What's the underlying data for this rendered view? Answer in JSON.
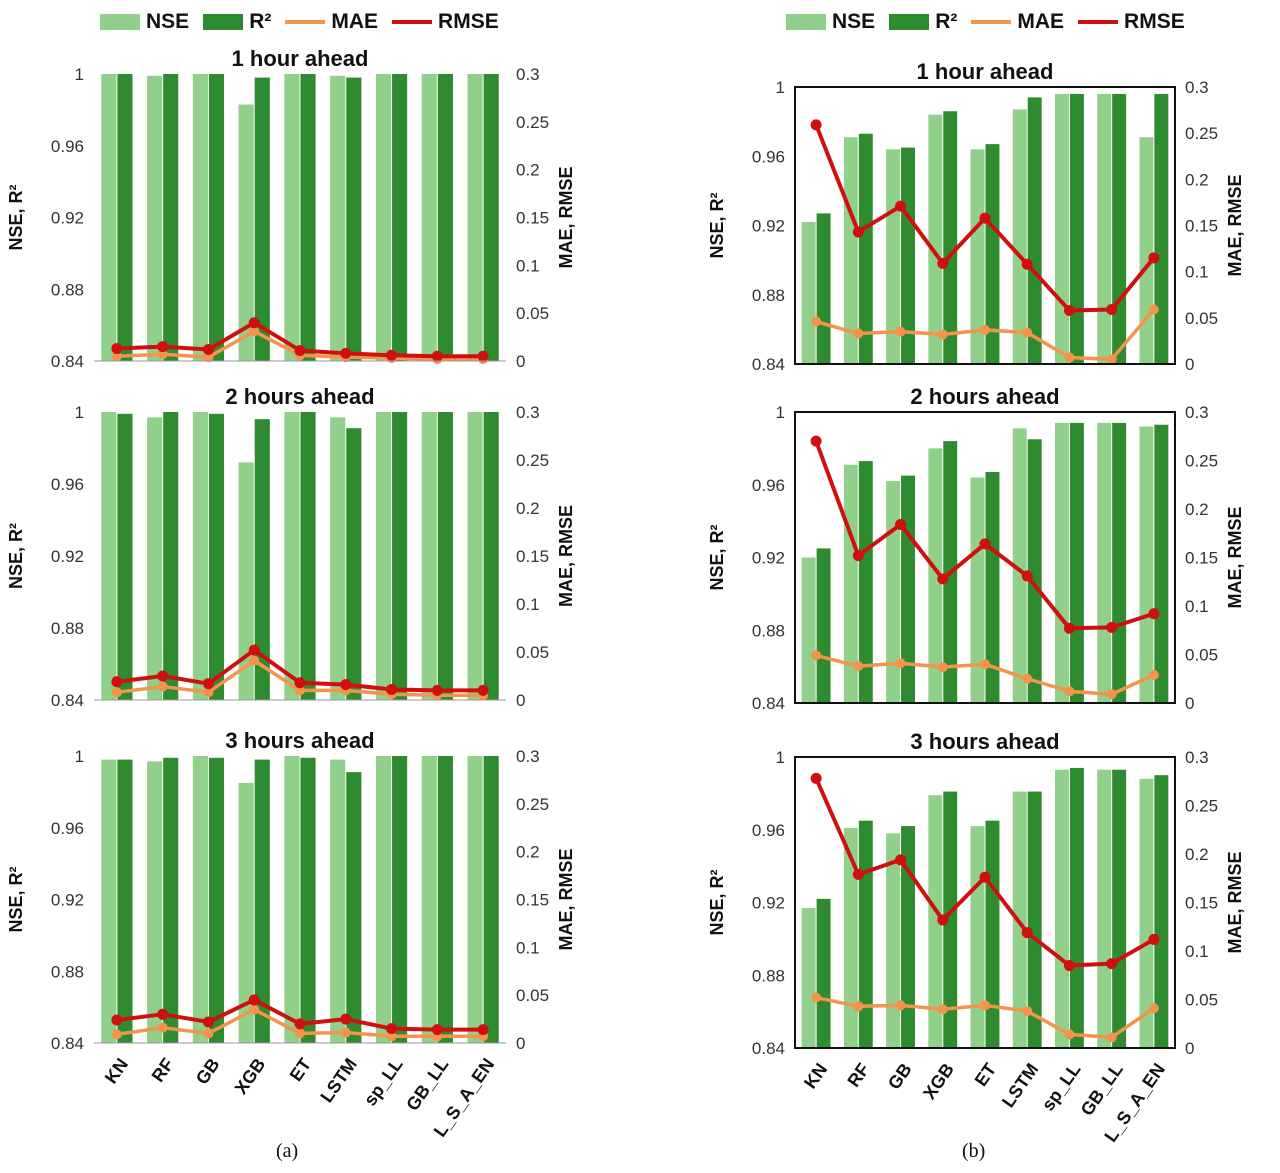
{
  "legend": {
    "items": [
      {
        "label": "NSE",
        "kind": "bar",
        "color": "#90d08a"
      },
      {
        "label": "R²",
        "kind": "bar",
        "color": "#2e8b30"
      },
      {
        "label": "MAE",
        "kind": "line",
        "color": "#f4944a"
      },
      {
        "label": "RMSE",
        "kind": "line",
        "color": "#d01010"
      }
    ]
  },
  "captions": {
    "a": "(a)",
    "b": "(b)"
  },
  "chart_data": [
    {
      "type": "bar+line",
      "panel": "a",
      "title": "1 hour ahead",
      "categories": [
        "KN",
        "RF",
        "GB",
        "XGB",
        "ET",
        "LSTM",
        "sp_LL",
        "GB_LL",
        "L_S_A_EN"
      ],
      "ylabel": "NSE, R²",
      "y2label": "MAE, RMSE",
      "ylim": [
        0.84,
        1
      ],
      "yticks": [
        "0.84",
        "0.88",
        "0.92",
        "0.96",
        "1"
      ],
      "y2lim": [
        0,
        0.3
      ],
      "y2ticks": [
        "0",
        "0.05",
        "0.1",
        "0.15",
        "0.2",
        "0.25",
        "0.3"
      ],
      "series": [
        {
          "name": "NSE",
          "kind": "bar",
          "values": [
            1.0,
            0.999,
            1.0,
            0.983,
            1.0,
            0.999,
            1.0,
            1.0,
            1.0
          ]
        },
        {
          "name": "R²",
          "kind": "bar",
          "values": [
            1.0,
            1.0,
            1.0,
            0.998,
            1.0,
            0.998,
            1.0,
            1.0,
            1.0
          ]
        },
        {
          "name": "MAE",
          "kind": "line",
          "axis": "right",
          "values": [
            0.005,
            0.007,
            0.004,
            0.031,
            0.006,
            0.004,
            0.003,
            0.002,
            0.002
          ]
        },
        {
          "name": "RMSE",
          "kind": "line",
          "axis": "right",
          "values": [
            0.013,
            0.015,
            0.012,
            0.04,
            0.011,
            0.008,
            0.006,
            0.005,
            0.005
          ]
        }
      ],
      "axis_style": "open"
    },
    {
      "type": "bar+line",
      "panel": "a",
      "title": "2 hours ahead",
      "categories": [
        "KN",
        "RF",
        "GB",
        "XGB",
        "ET",
        "LSTM",
        "sp_LL",
        "GB_LL",
        "L_S_A_EN"
      ],
      "ylabel": "NSE, R²",
      "y2label": "MAE, RMSE",
      "ylim": [
        0.84,
        1
      ],
      "yticks": [
        "0.84",
        "0.88",
        "0.92",
        "0.96",
        "1"
      ],
      "y2lim": [
        0,
        0.3
      ],
      "y2ticks": [
        "0",
        "0.05",
        "0.1",
        "0.15",
        "0.2",
        "0.25",
        "0.3"
      ],
      "series": [
        {
          "name": "NSE",
          "kind": "bar",
          "values": [
            1.0,
            0.997,
            1.0,
            0.972,
            1.0,
            0.997,
            1.0,
            1.0,
            1.0
          ]
        },
        {
          "name": "R²",
          "kind": "bar",
          "values": [
            0.999,
            1.0,
            0.999,
            0.996,
            1.0,
            0.991,
            1.0,
            1.0,
            1.0
          ]
        },
        {
          "name": "MAE",
          "kind": "line",
          "axis": "right",
          "values": [
            0.008,
            0.014,
            0.008,
            0.041,
            0.01,
            0.01,
            0.006,
            0.005,
            0.005
          ]
        },
        {
          "name": "RMSE",
          "kind": "line",
          "axis": "right",
          "values": [
            0.019,
            0.025,
            0.017,
            0.052,
            0.018,
            0.016,
            0.011,
            0.01,
            0.01
          ]
        }
      ],
      "axis_style": "open"
    },
    {
      "type": "bar+line",
      "panel": "a",
      "title": "3 hours ahead",
      "categories": [
        "KN",
        "RF",
        "GB",
        "XGB",
        "ET",
        "LSTM",
        "sp_LL",
        "GB_LL",
        "L_S_A_EN"
      ],
      "ylabel": "NSE, R²",
      "y2label": "MAE, RMSE",
      "ylim": [
        0.84,
        1
      ],
      "yticks": [
        "0.84",
        "0.88",
        "0.92",
        "0.96",
        "1"
      ],
      "y2lim": [
        0,
        0.3
      ],
      "y2ticks": [
        "0",
        "0.05",
        "0.1",
        "0.15",
        "0.2",
        "0.25",
        "0.3"
      ],
      "series": [
        {
          "name": "NSE",
          "kind": "bar",
          "values": [
            0.998,
            0.997,
            1.0,
            0.985,
            1.0,
            0.998,
            1.0,
            1.0,
            1.0
          ]
        },
        {
          "name": "R²",
          "kind": "bar",
          "values": [
            0.998,
            0.999,
            0.999,
            0.998,
            0.999,
            0.991,
            1.0,
            1.0,
            1.0
          ]
        },
        {
          "name": "MAE",
          "kind": "line",
          "axis": "right",
          "values": [
            0.009,
            0.016,
            0.01,
            0.035,
            0.01,
            0.011,
            0.007,
            0.007,
            0.007
          ]
        },
        {
          "name": "RMSE",
          "kind": "line",
          "axis": "right",
          "values": [
            0.024,
            0.03,
            0.022,
            0.045,
            0.02,
            0.025,
            0.015,
            0.014,
            0.014
          ]
        }
      ],
      "axis_style": "open"
    },
    {
      "type": "bar+line",
      "panel": "b",
      "title": "1 hour ahead",
      "categories": [
        "KN",
        "RF",
        "GB",
        "XGB",
        "ET",
        "LSTM",
        "sp_LL",
        "GB_LL",
        "L_S_A_EN"
      ],
      "ylabel": "NSE, R²",
      "y2label": "MAE, RMSE",
      "ylim": [
        0.84,
        1
      ],
      "yticks": [
        "0.84",
        "0.88",
        "0.92",
        "0.96",
        "1"
      ],
      "y2lim": [
        0,
        0.3
      ],
      "y2ticks": [
        "0",
        "0.05",
        "0.1",
        "0.15",
        "0.2",
        "0.25",
        "0.3"
      ],
      "series": [
        {
          "name": "NSE",
          "kind": "bar",
          "values": [
            0.922,
            0.971,
            0.964,
            0.984,
            0.964,
            0.987,
            0.996,
            0.996,
            0.971
          ]
        },
        {
          "name": "R²",
          "kind": "bar",
          "values": [
            0.927,
            0.973,
            0.965,
            0.986,
            0.967,
            0.994,
            0.996,
            0.996,
            0.996
          ]
        },
        {
          "name": "MAE",
          "kind": "line",
          "axis": "right",
          "values": [
            0.046,
            0.033,
            0.035,
            0.032,
            0.037,
            0.034,
            0.007,
            0.005,
            0.059
          ]
        },
        {
          "name": "RMSE",
          "kind": "line",
          "axis": "right",
          "values": [
            0.259,
            0.143,
            0.171,
            0.109,
            0.158,
            0.108,
            0.058,
            0.059,
            0.115
          ]
        }
      ],
      "axis_style": "box"
    },
    {
      "type": "bar+line",
      "panel": "b",
      "title": "2 hours ahead",
      "categories": [
        "KN",
        "RF",
        "GB",
        "XGB",
        "ET",
        "LSTM",
        "sp_LL",
        "GB_LL",
        "L_S_A_EN"
      ],
      "ylabel": "NSE, R²",
      "y2label": "MAE, RMSE",
      "ylim": [
        0.84,
        1
      ],
      "yticks": [
        "0.84",
        "0.88",
        "0.92",
        "0.96",
        "1"
      ],
      "y2lim": [
        0,
        0.3
      ],
      "y2ticks": [
        "0",
        "0.05",
        "0.1",
        "0.15",
        "0.2",
        "0.25",
        "0.3"
      ],
      "series": [
        {
          "name": "NSE",
          "kind": "bar",
          "values": [
            0.92,
            0.971,
            0.962,
            0.98,
            0.964,
            0.991,
            0.994,
            0.994,
            0.992
          ]
        },
        {
          "name": "R²",
          "kind": "bar",
          "values": [
            0.925,
            0.973,
            0.965,
            0.984,
            0.967,
            0.985,
            0.994,
            0.994,
            0.993
          ]
        },
        {
          "name": "MAE",
          "kind": "line",
          "axis": "right",
          "values": [
            0.049,
            0.038,
            0.041,
            0.037,
            0.04,
            0.025,
            0.012,
            0.009,
            0.029
          ]
        },
        {
          "name": "RMSE",
          "kind": "line",
          "axis": "right",
          "values": [
            0.27,
            0.152,
            0.184,
            0.128,
            0.164,
            0.131,
            0.077,
            0.078,
            0.092
          ]
        }
      ],
      "axis_style": "box"
    },
    {
      "type": "bar+line",
      "panel": "b",
      "title": "3 hours ahead",
      "categories": [
        "KN",
        "RF",
        "GB",
        "XGB",
        "ET",
        "LSTM",
        "sp_LL",
        "GB_LL",
        "L_S_A_EN"
      ],
      "ylabel": "NSE, R²",
      "y2label": "MAE, RMSE",
      "ylim": [
        0.84,
        1
      ],
      "yticks": [
        "0.84",
        "0.88",
        "0.92",
        "0.96",
        "1"
      ],
      "y2lim": [
        0,
        0.3
      ],
      "y2ticks": [
        "0",
        "0.05",
        "0.1",
        "0.15",
        "0.2",
        "0.25",
        "0.3"
      ],
      "series": [
        {
          "name": "NSE",
          "kind": "bar",
          "values": [
            0.917,
            0.961,
            0.958,
            0.979,
            0.962,
            0.981,
            0.993,
            0.993,
            0.988
          ]
        },
        {
          "name": "R²",
          "kind": "bar",
          "values": [
            0.922,
            0.965,
            0.962,
            0.981,
            0.965,
            0.981,
            0.994,
            0.993,
            0.99
          ]
        },
        {
          "name": "MAE",
          "kind": "line",
          "axis": "right",
          "values": [
            0.052,
            0.043,
            0.044,
            0.04,
            0.044,
            0.038,
            0.014,
            0.011,
            0.041
          ]
        },
        {
          "name": "RMSE",
          "kind": "line",
          "axis": "right",
          "values": [
            0.278,
            0.179,
            0.194,
            0.132,
            0.176,
            0.119,
            0.085,
            0.087,
            0.112
          ]
        }
      ],
      "axis_style": "box"
    }
  ]
}
